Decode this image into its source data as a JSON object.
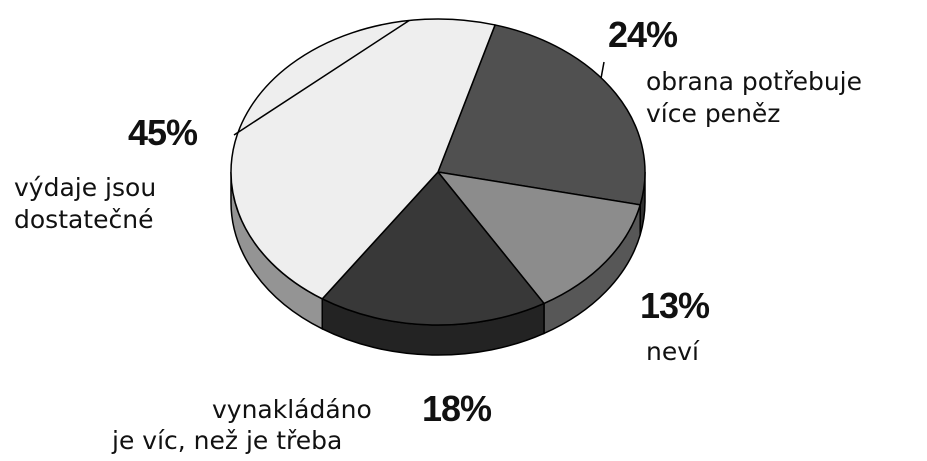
{
  "chart_data": {
    "type": "pie",
    "title": "",
    "style": "3d",
    "slices": [
      {
        "label": "obrana potřebuje více peněz",
        "line1": "obrana potřebuje",
        "line2": "více peněz",
        "percent_text": "24%",
        "value": 24,
        "color": "#505050"
      },
      {
        "label": "neví",
        "line1": "neví",
        "line2": "",
        "percent_text": "13%",
        "value": 13,
        "color": "#8c8c8c"
      },
      {
        "label": "vynakládáno je víc, než je třeba",
        "line1": "vynakládáno",
        "line2": "je víc, než je třeba",
        "percent_text": "18%",
        "value": 18,
        "color": "#383838"
      },
      {
        "label": "výdaje jsou dostatečné",
        "line1": "výdaje jsou",
        "line2": "dostatečné",
        "percent_text": "45%",
        "value": 45,
        "color": "#eeeeee"
      }
    ]
  }
}
